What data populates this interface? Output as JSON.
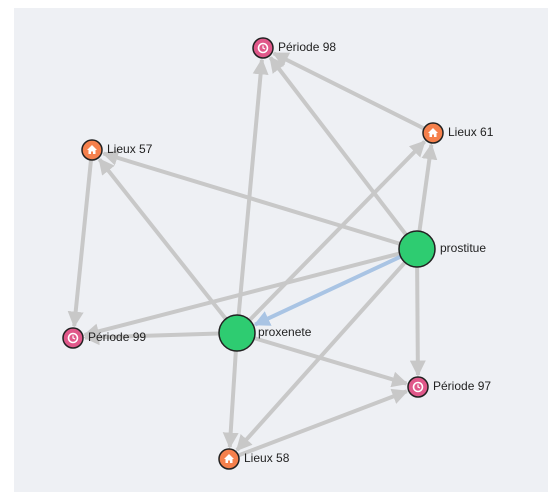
{
  "nodes": [
    {
      "label": "Période 98"
    },
    {
      "label": "Lieux 57"
    },
    {
      "label": "Lieux 61"
    },
    {
      "label": "prostitue"
    },
    {
      "label": "Période 99"
    },
    {
      "label": "proxenete"
    },
    {
      "label": "Période 97"
    },
    {
      "label": "Lieux 58"
    }
  ]
}
